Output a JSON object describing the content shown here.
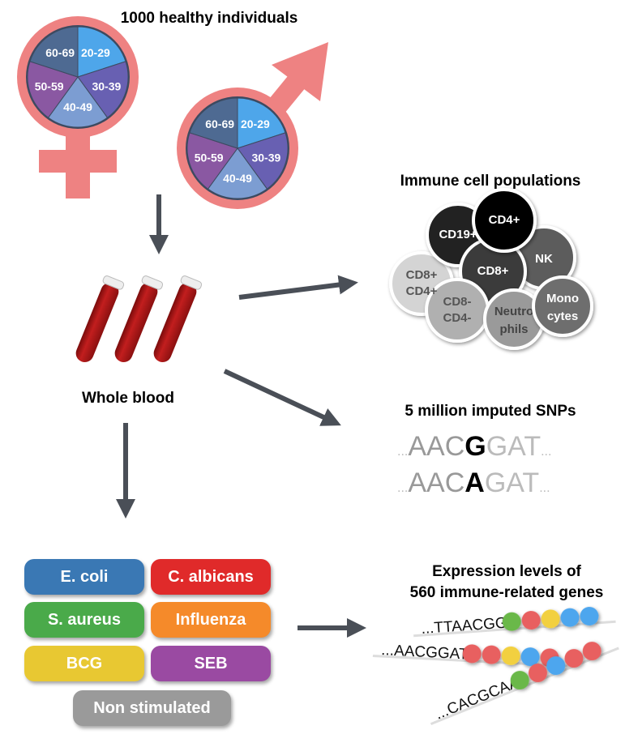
{
  "title": "1000 healthy individuals",
  "age_groups": [
    "20-29",
    "30-39",
    "40-49",
    "50-59",
    "60-69"
  ],
  "age_colors": [
    "#4ea6ea",
    "#6860b2",
    "#7c9dd2",
    "#8a58a2",
    "#4e6a92"
  ],
  "symbol_color": "#ee8282",
  "arrow_color": "#4a4f57",
  "whole_blood": "Whole blood",
  "immune": {
    "title": "Immune cell populations",
    "cells": [
      {
        "label": "CD8+ CD4+",
        "l1": "CD8",
        "s1": "+",
        "l2": "CD4",
        "s2": "+",
        "color": "#d4d4d4",
        "text": "#555"
      },
      {
        "label": "CD19+",
        "l1": "CD19",
        "s1": "+",
        "color": "#222",
        "text": "#fff"
      },
      {
        "label": "NK",
        "l1": "NK",
        "color": "#5c5c5c",
        "text": "#fff"
      },
      {
        "label": "CD8+",
        "l1": "CD8",
        "s1": "+",
        "color": "#3a3a3a",
        "text": "#fff"
      },
      {
        "label": "CD4+",
        "l1": "CD4",
        "s1": "+",
        "color": "#000",
        "text": "#fff"
      },
      {
        "label": "CD8- CD4-",
        "l1": "CD8",
        "s1": "-",
        "l2": "CD4",
        "s2": "-",
        "color": "#b0b0b0",
        "text": "#555"
      },
      {
        "label": "Neutrophils",
        "l1": "Neutro",
        "l2": "phils",
        "color": "#9a9a9a",
        "text": "#444"
      },
      {
        "label": "Monocytes",
        "l1": "Mono",
        "l2": "cytes",
        "color": "#6e6e6e",
        "text": "#fff"
      }
    ]
  },
  "snps": {
    "title": "5 million imputed SNPs",
    "rows": [
      {
        "pre": "AAC",
        "allele": "G",
        "post": "GAT"
      },
      {
        "pre": "AAC",
        "allele": "A",
        "post": "GAT"
      }
    ],
    "dots": "..."
  },
  "stimuli": [
    {
      "label": "E. coli",
      "color": "#3a78b4"
    },
    {
      "label": "C. albicans",
      "color": "#e02a2a"
    },
    {
      "label": "S. aureus",
      "color": "#4aaa4a"
    },
    {
      "label": "Influenza",
      "color": "#f58a2a"
    },
    {
      "label": "BCG",
      "color": "#e8c832"
    },
    {
      "label": "SEB",
      "color": "#9a4aa2"
    },
    {
      "label": "Non stimulated",
      "color": "#9a9a9a"
    }
  ],
  "expression": {
    "title_line1": "Expression levels of",
    "title_line2": "560 immune-related genes",
    "reads": [
      {
        "seq": "...TTAACGG",
        "beads": [
          "#6ab84a",
          "#e86060",
          "#f2d040",
          "#4ea6ee",
          "#4ea6ee"
        ]
      },
      {
        "seq": "...AACGGAT",
        "beads": [
          "#e86060",
          "#e86060",
          "#f2d040",
          "#4ea6ee",
          "#e86060"
        ]
      },
      {
        "seq": "...CACGCAA",
        "beads": [
          "#6ab84a",
          "#e86060",
          "#4ea6ee",
          "#e86060",
          "#e86060"
        ]
      }
    ]
  }
}
